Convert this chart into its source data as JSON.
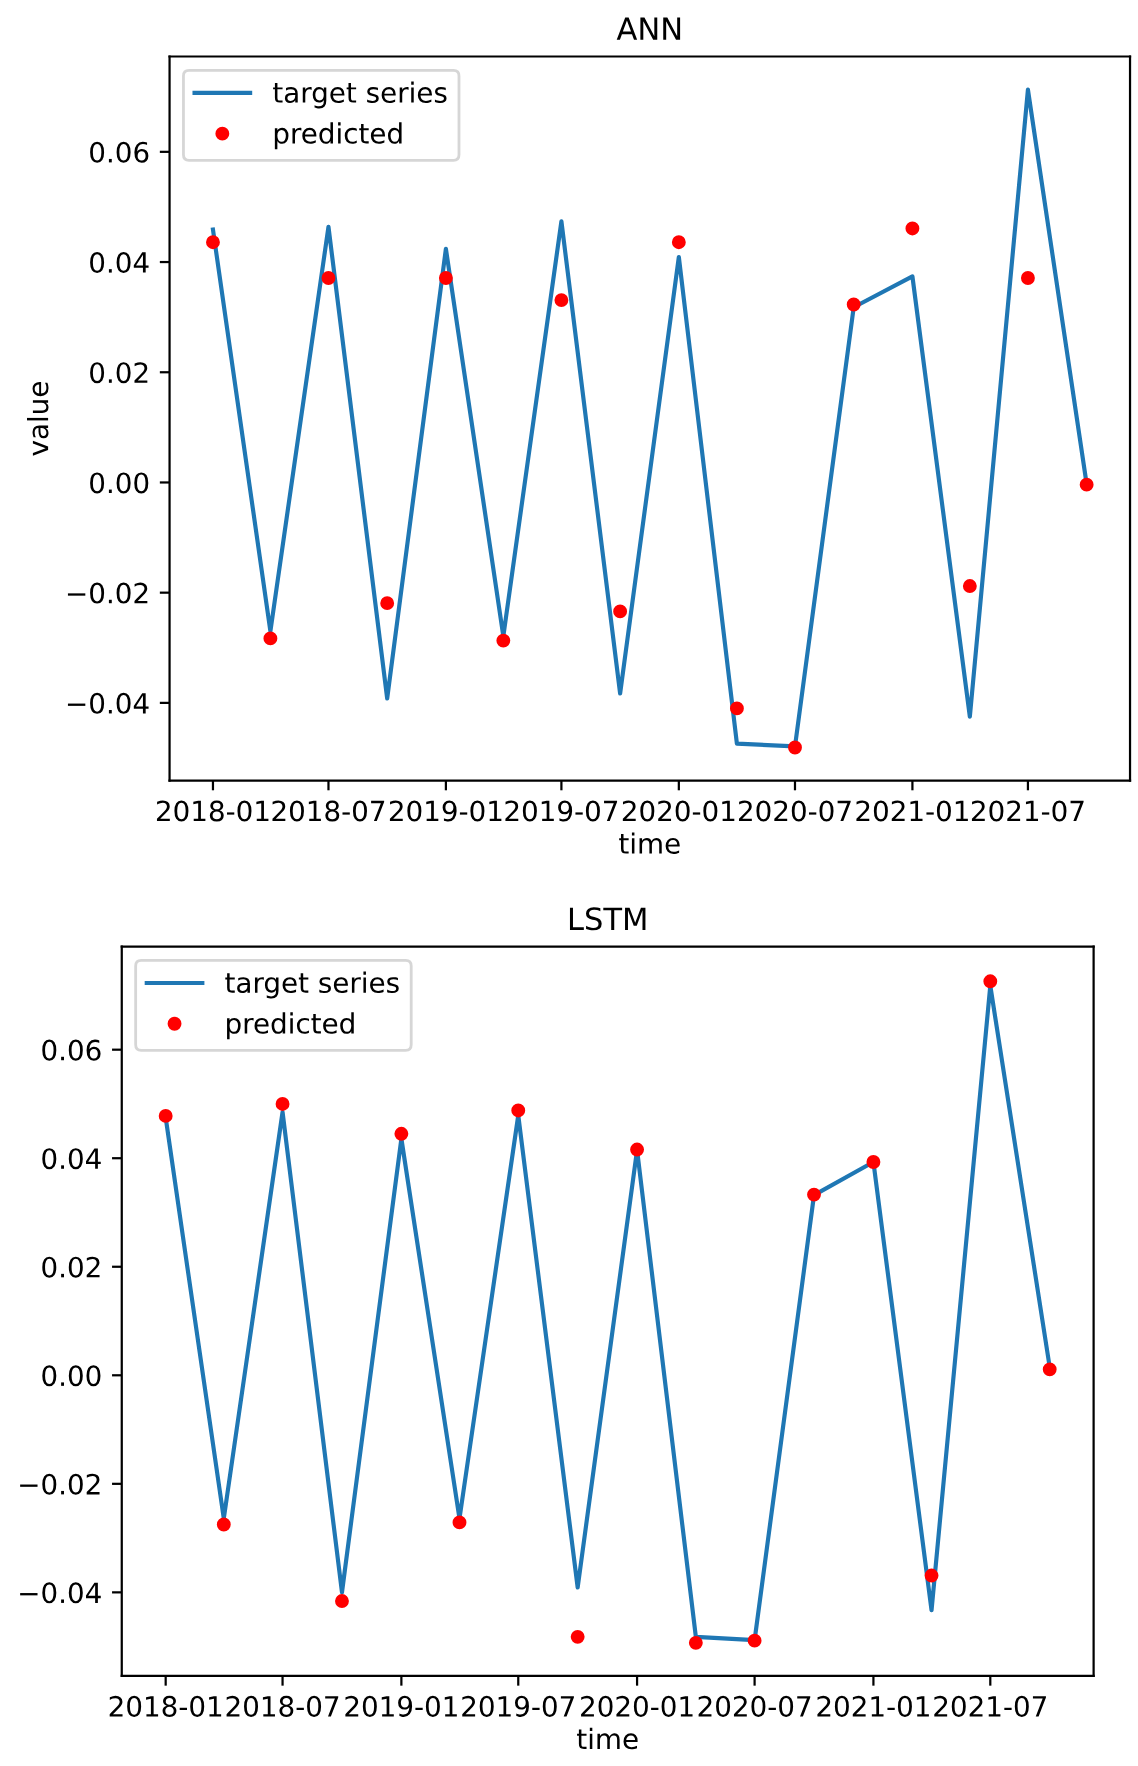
{
  "chart_data": [
    {
      "type": "line",
      "title": "ANN",
      "xlabel": "time",
      "ylabel": "value",
      "x": [
        "2018-01",
        "2018-04",
        "2018-07",
        "2018-10",
        "2019-01",
        "2019-04",
        "2019-07",
        "2019-10",
        "2020-01",
        "2020-04",
        "2020-07",
        "2020-10",
        "2021-01",
        "2021-04",
        "2021-07",
        "2021-10"
      ],
      "series": [
        {
          "name": "target series",
          "color": "#1f77b4",
          "line_style": "solid",
          "values": [
            0.0459,
            -0.027,
            0.0464,
            -0.0392,
            0.0424,
            -0.0279,
            0.0474,
            -0.0383,
            0.0409,
            -0.0474,
            -0.0479,
            0.0318,
            0.0374,
            -0.0425,
            0.0713,
            -0.0003
          ]
        },
        {
          "name": "predicted",
          "type": "scatter",
          "color": "#ff0000",
          "marker": "circle",
          "values": [
            0.0436,
            -0.0283,
            0.0371,
            -0.0219,
            0.0371,
            -0.0287,
            0.0331,
            -0.0234,
            0.0436,
            -0.041,
            -0.0481,
            0.0323,
            0.0461,
            -0.0188,
            0.0371,
            -0.0004
          ]
        }
      ],
      "xlim": [
        "2017-10-25",
        "2021-12-08"
      ],
      "xticks": [
        "2018-01",
        "2018-07",
        "2019-01",
        "2019-07",
        "2020-01",
        "2020-07",
        "2021-01",
        "2021-07"
      ],
      "ylim": [
        -0.0541,
        0.0773
      ],
      "yticks": [
        {
          "value": -0.04,
          "label": "−0.04"
        },
        {
          "value": -0.02,
          "label": "−0.02"
        },
        {
          "value": 0,
          "label": "0.00"
        },
        0.02,
        0.04,
        0.06
      ],
      "legend": "top left",
      "grid": false
    },
    {
      "type": "line",
      "title": "LSTM",
      "xlabel": "time",
      "x": [
        "2018-01",
        "2018-04",
        "2018-07",
        "2018-10",
        "2019-01",
        "2019-04",
        "2019-07",
        "2019-10",
        "2020-01",
        "2020-04",
        "2020-07",
        "2020-10",
        "2021-01",
        "2021-04",
        "2021-07",
        "2021-10"
      ],
      "series": [
        {
          "name": "target series",
          "color": "#1f77b4",
          "line_style": "solid",
          "values": [
            0.0475,
            -0.0264,
            0.0485,
            -0.04,
            0.0436,
            -0.0264,
            0.0479,
            -0.0391,
            0.0415,
            -0.0482,
            -0.0488,
            0.0332,
            0.0393,
            -0.0433,
            0.0718,
            0.0015
          ]
        },
        {
          "name": "predicted",
          "type": "scatter",
          "color": "#ff0000",
          "marker": "circle",
          "values": [
            0.0478,
            -0.0275,
            0.05,
            -0.0416,
            0.0445,
            -0.0271,
            0.0488,
            -0.0482,
            0.0416,
            -0.0493,
            -0.0489,
            0.0333,
            0.0393,
            -0.0369,
            0.0726,
            0.0011
          ]
        }
      ],
      "xlim": [
        "2017-10-25",
        "2021-12-08"
      ],
      "xticks": [
        "2018-01",
        "2018-07",
        "2019-01",
        "2019-07",
        "2020-01",
        "2020-07",
        "2021-01",
        "2021-07"
      ],
      "ylim": [
        -0.0554,
        0.079
      ],
      "yticks": [
        {
          "value": -0.04,
          "label": "−0.04"
        },
        {
          "value": -0.02,
          "label": "−0.02"
        },
        {
          "value": 0,
          "label": "0.00"
        },
        0.02,
        0.04,
        0.06
      ],
      "legend": "top left",
      "grid": false
    }
  ]
}
